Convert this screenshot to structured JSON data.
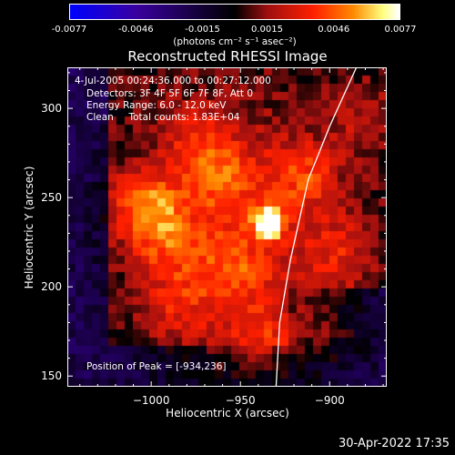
{
  "colorbar": {
    "ticks": [
      "-0.0077",
      "-0.0046",
      "-0.0015",
      "0.0015",
      "0.0046",
      "0.0077"
    ],
    "tick_values": [
      -0.0077,
      -0.0046,
      -0.0015,
      0.0015,
      0.0046,
      0.0077
    ],
    "range": [
      -0.0077,
      0.0077
    ],
    "units": "(photons cm⁻² s⁻¹ asec⁻²)",
    "colors": [
      "#0000ff",
      "#3a00a0",
      "#000000",
      "#a01010",
      "#ff2000",
      "#ff8a00",
      "#ffff80",
      "#ffffff"
    ]
  },
  "chart_data": {
    "type": "heatmap",
    "title": "Reconstructed RHESSI Image",
    "xlabel": "Heliocentric X (arcsec)",
    "ylabel": "Heliocentric Y (arcsec)",
    "xlim": [
      -1047,
      -868
    ],
    "ylim": [
      144,
      323
    ],
    "xticks": [
      -1000,
      -950,
      -900
    ],
    "yticks": [
      150,
      200,
      250,
      300
    ],
    "xtick_labels": [
      "−1000",
      "−950",
      "−900"
    ],
    "ytick_labels": [
      "150",
      "200",
      "250",
      "300"
    ],
    "peak": {
      "x": -934,
      "y": 236,
      "value": 0.0077
    },
    "sources": [
      {
        "x": -934,
        "y": 236,
        "value": 0.0077
      },
      {
        "x": -1003,
        "y": 246,
        "value": 0.0046
      },
      {
        "x": -962,
        "y": 262,
        "value": 0.0032
      },
      {
        "x": -915,
        "y": 262,
        "value": 0.003
      },
      {
        "x": -990,
        "y": 225,
        "value": 0.0028
      },
      {
        "x": -955,
        "y": 210,
        "value": 0.0025
      },
      {
        "x": -940,
        "y": 170,
        "value": 0.0022
      },
      {
        "x": -985,
        "y": 190,
        "value": 0.002
      },
      {
        "x": -975,
        "y": 285,
        "value": 0.002
      },
      {
        "x": -895,
        "y": 220,
        "value": 0.0022
      },
      {
        "x": -880,
        "y": 295,
        "value": 0.0018
      },
      {
        "x": -900,
        "y": 175,
        "value": 0.0018
      }
    ],
    "limb_curve": [
      {
        "x": -930,
        "y": 144
      },
      {
        "x": -928,
        "y": 180
      },
      {
        "x": -922,
        "y": 215
      },
      {
        "x": -912,
        "y": 260
      },
      {
        "x": -900,
        "y": 290
      },
      {
        "x": -885,
        "y": 323
      }
    ],
    "annotations": {
      "time": "4-Jul-2005 00:24:36.000 to 00:27:12.000",
      "detectors": "Detectors: 3F 4F 5F 6F 7F 8F, Att 0",
      "energy": "Energy Range: 6.0 - 12.0 keV",
      "clean": "Clean     Total counts: 1.83E+04",
      "peak_position": "Position of Peak = [-934,236]"
    }
  },
  "timestamp": "30-Apr-2022 17:35"
}
